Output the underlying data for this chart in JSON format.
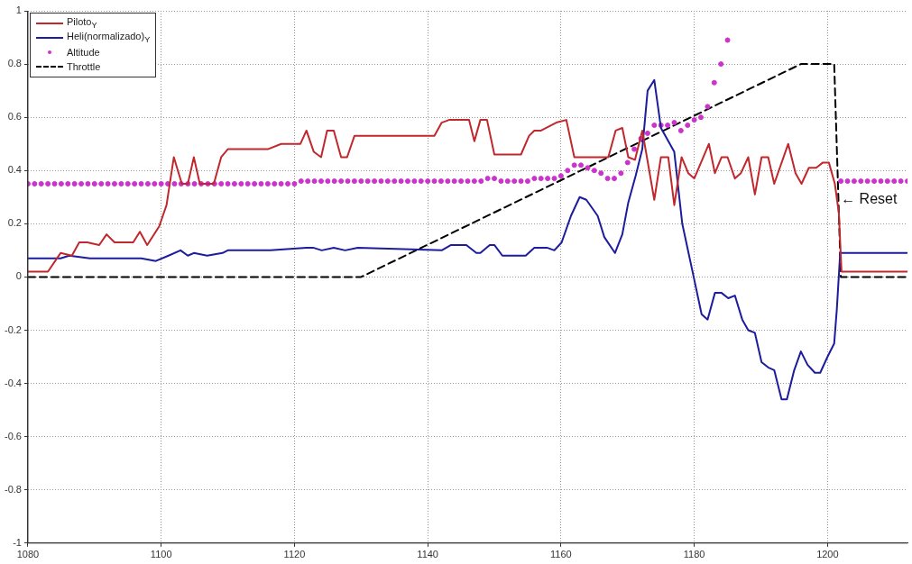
{
  "chart_data": {
    "type": "line",
    "xlim": [
      1080,
      1212
    ],
    "xticks": [
      1080,
      1100,
      1120,
      1140,
      1160,
      1180,
      1200
    ],
    "ylim": [
      -1,
      1
    ],
    "yticks": [
      -1,
      -0.8,
      -0.6,
      -0.4,
      -0.2,
      0,
      0.2,
      0.4,
      0.6,
      0.8,
      1
    ],
    "grid": true,
    "legend": "top left",
    "annotations": [
      {
        "text": "← Reset",
        "x": 1202,
        "y": 0.29
      }
    ],
    "series": [
      {
        "name": "Piloto$_{Y}$",
        "color": "#c0282d",
        "marker": "none",
        "x": [
          1080,
          1081.6,
          1083,
          1084.9,
          1086.6,
          1087.7,
          1088.9,
          1090.7,
          1091.8,
          1093,
          1095.8,
          1096.8,
          1097.9,
          1099.7,
          1100.8,
          1101.9,
          1103.1,
          1104,
          1104.9,
          1105.8,
          1107.9,
          1109,
          1110,
          1116,
          1118,
          1120.9,
          1121.8,
          1122.9,
          1124,
          1124.9,
          1125.9,
          1127,
          1127.9,
          1129,
          1141,
          1142.1,
          1143.2,
          1146.2,
          1147,
          1147.9,
          1148.9,
          1150,
          1154,
          1155.2,
          1156,
          1157,
          1159.3,
          1160.8,
          1162,
          1166.5,
          1167.1,
          1168.2,
          1169.2,
          1170.1,
          1171.1,
          1172.2,
          1174,
          1175,
          1176.1,
          1177,
          1178.1,
          1179.1,
          1180,
          1182.2,
          1183.1,
          1184.1,
          1185,
          1186.1,
          1187,
          1188.1,
          1189.1,
          1190.1,
          1191.1,
          1192,
          1194.1,
          1195.2,
          1196.1,
          1197.2,
          1198.3,
          1199.3,
          1200.2,
          1201.1,
          1201.7,
          1202.1,
          1212
        ],
        "values": [
          0.02,
          0.02,
          0.02,
          0.09,
          0.08,
          0.13,
          0.13,
          0.12,
          0.16,
          0.13,
          0.13,
          0.17,
          0.12,
          0.19,
          0.27,
          0.45,
          0.35,
          0.35,
          0.45,
          0.35,
          0.35,
          0.45,
          0.48,
          0.48,
          0.5,
          0.5,
          0.55,
          0.47,
          0.45,
          0.55,
          0.55,
          0.45,
          0.45,
          0.53,
          0.53,
          0.58,
          0.59,
          0.59,
          0.51,
          0.59,
          0.59,
          0.46,
          0.46,
          0.53,
          0.55,
          0.55,
          0.58,
          0.59,
          0.45,
          0.45,
          0.45,
          0.55,
          0.56,
          0.45,
          0.44,
          0.55,
          0.29,
          0.45,
          0.45,
          0.27,
          0.45,
          0.39,
          0.37,
          0.5,
          0.39,
          0.45,
          0.45,
          0.37,
          0.39,
          0.45,
          0.31,
          0.45,
          0.45,
          0.35,
          0.5,
          0.39,
          0.35,
          0.41,
          0.41,
          0.43,
          0.43,
          0.35,
          0.24,
          0.02,
          0.02
        ]
      },
      {
        "name": "Heli(normalizado)$_{Y}$",
        "color": "#1c1c9c",
        "marker": "none",
        "x": [
          1080,
          1084.9,
          1086.2,
          1089.3,
          1093,
          1094.7,
          1097,
          1099.2,
          1101.1,
          1102.9,
          1104,
          1104.9,
          1106.9,
          1109.2,
          1110,
          1116.4,
          1121.8,
          1122.8,
          1124.1,
          1125.9,
          1127.6,
          1129.5,
          1142.1,
          1143.5,
          1145.8,
          1147.3,
          1147.9,
          1149.3,
          1150,
          1151.2,
          1154.7,
          1156,
          1157.9,
          1159,
          1160.1,
          1161.5,
          1162.8,
          1163.8,
          1165.5,
          1166.5,
          1168.1,
          1169.2,
          1170.1,
          1171.2,
          1172.2,
          1173,
          1174,
          1175,
          1177,
          1178.2,
          1180,
          1181.1,
          1182,
          1183.1,
          1184.1,
          1185.1,
          1186.1,
          1187.2,
          1188.1,
          1189.1,
          1190.1,
          1191.1,
          1192,
          1193.1,
          1193.9,
          1195,
          1196,
          1197,
          1198.1,
          1198.9,
          1200,
          1201,
          1201.4,
          1201.9,
          1212
        ],
        "values": [
          0.07,
          0.07,
          0.08,
          0.07,
          0.07,
          0.07,
          0.07,
          0.06,
          0.08,
          0.1,
          0.08,
          0.09,
          0.08,
          0.09,
          0.1,
          0.1,
          0.11,
          0.11,
          0.1,
          0.11,
          0.1,
          0.11,
          0.1,
          0.12,
          0.12,
          0.09,
          0.09,
          0.12,
          0.12,
          0.08,
          0.08,
          0.11,
          0.11,
          0.1,
          0.13,
          0.23,
          0.3,
          0.29,
          0.23,
          0.15,
          0.09,
          0.16,
          0.28,
          0.38,
          0.48,
          0.7,
          0.74,
          0.56,
          0.47,
          0.2,
          -0.01,
          -0.14,
          -0.16,
          -0.06,
          -0.06,
          -0.08,
          -0.07,
          -0.16,
          -0.2,
          -0.21,
          -0.32,
          -0.34,
          -0.35,
          -0.46,
          -0.46,
          -0.35,
          -0.28,
          -0.33,
          -0.36,
          -0.36,
          -0.3,
          -0.25,
          -0.12,
          0.09,
          0.09
        ]
      },
      {
        "name": "Altitude",
        "type": "scatter",
        "color": "#cc33cc",
        "marker": "circle",
        "x": [
          1080,
          1081,
          1082,
          1083,
          1084,
          1085,
          1086,
          1087,
          1088,
          1089,
          1090,
          1091,
          1092,
          1093,
          1094,
          1095,
          1096,
          1097,
          1098,
          1099,
          1100,
          1101,
          1102,
          1103,
          1104,
          1105,
          1106,
          1107,
          1108,
          1109,
          1110,
          1111,
          1112,
          1113,
          1114,
          1115,
          1116,
          1117,
          1118,
          1119,
          1120,
          1121,
          1122,
          1123,
          1124,
          1125,
          1126,
          1127,
          1128,
          1129,
          1130,
          1131,
          1132,
          1133,
          1134,
          1135,
          1136,
          1137,
          1138,
          1139,
          1140,
          1141,
          1142,
          1143,
          1144,
          1145,
          1146,
          1147,
          1148,
          1149,
          1150,
          1151,
          1152,
          1153,
          1154,
          1155,
          1156,
          1157,
          1158,
          1159,
          1160,
          1161,
          1162,
          1163,
          1164,
          1165,
          1166,
          1167,
          1168,
          1169,
          1170,
          1171,
          1172,
          1173,
          1174,
          1175,
          1176,
          1177,
          1178,
          1179,
          1180,
          1181,
          1182,
          1183,
          1184,
          1185,
          1202,
          1203,
          1204,
          1205,
          1206,
          1207,
          1208,
          1209,
          1210,
          1211,
          1212
        ],
        "values": [
          0.35,
          0.35,
          0.35,
          0.35,
          0.35,
          0.35,
          0.35,
          0.35,
          0.35,
          0.35,
          0.35,
          0.35,
          0.35,
          0.35,
          0.35,
          0.35,
          0.35,
          0.35,
          0.35,
          0.35,
          0.35,
          0.35,
          0.35,
          0.35,
          0.35,
          0.35,
          0.35,
          0.35,
          0.35,
          0.35,
          0.35,
          0.35,
          0.35,
          0.35,
          0.35,
          0.35,
          0.35,
          0.35,
          0.35,
          0.35,
          0.35,
          0.36,
          0.36,
          0.36,
          0.36,
          0.36,
          0.36,
          0.36,
          0.36,
          0.36,
          0.36,
          0.36,
          0.36,
          0.36,
          0.36,
          0.36,
          0.36,
          0.36,
          0.36,
          0.36,
          0.36,
          0.36,
          0.36,
          0.36,
          0.36,
          0.36,
          0.36,
          0.36,
          0.36,
          0.37,
          0.37,
          0.36,
          0.36,
          0.36,
          0.36,
          0.36,
          0.37,
          0.37,
          0.37,
          0.37,
          0.38,
          0.4,
          0.42,
          0.42,
          0.41,
          0.4,
          0.39,
          0.37,
          0.37,
          0.39,
          0.43,
          0.48,
          0.52,
          0.54,
          0.57,
          0.57,
          0.57,
          0.58,
          0.55,
          0.57,
          0.59,
          0.6,
          0.64,
          0.73,
          0.8,
          0.89,
          0.36,
          0.36,
          0.36,
          0.36,
          0.36,
          0.36,
          0.36,
          0.36,
          0.36,
          0.36,
          0.36
        ]
      },
      {
        "name": "Throttle",
        "color": "#000000",
        "marker": "none",
        "line_style": "dashed",
        "x": [
          1080,
          1130,
          1196,
          1201,
          1202,
          1212
        ],
        "values": [
          0,
          0,
          0.8,
          0.8,
          0,
          0
        ]
      }
    ]
  }
}
